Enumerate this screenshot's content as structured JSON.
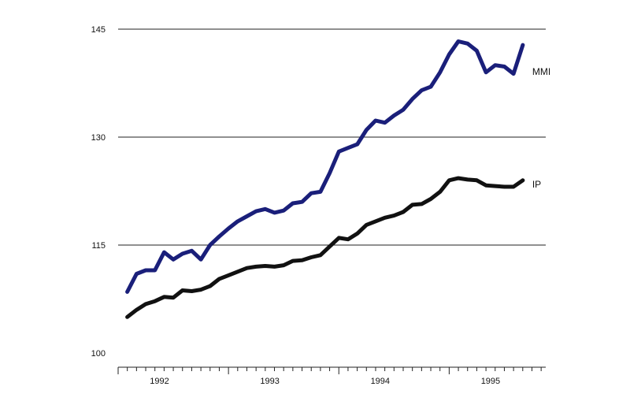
{
  "chart_data": {
    "type": "line",
    "title": "",
    "xlabel": "",
    "ylabel": "",
    "ylim": [
      100,
      145
    ],
    "yticks": [
      {
        "value": 100,
        "label": "100"
      },
      {
        "value": 115,
        "label": "115"
      },
      {
        "value": 130,
        "label": "130"
      },
      {
        "value": 145,
        "label": "145"
      }
    ],
    "xlim": [
      1991.625,
      1995.5
    ],
    "xticks": [
      {
        "value": 1992.5,
        "label": "1992"
      },
      {
        "value": 1993.5,
        "label": "1993"
      },
      {
        "value": 1994.5,
        "label": "1994"
      },
      {
        "value": 1995.5,
        "label": "1995"
      }
    ],
    "grid": "horizontal",
    "legend": "direct labels at right end of series",
    "series": [
      {
        "name": "MMI",
        "color": "#1a1f7a",
        "x": [
          1991.708,
          1991.792,
          1991.875,
          1991.958,
          1992.042,
          1992.125,
          1992.208,
          1992.292,
          1992.375,
          1992.458,
          1992.542,
          1992.625,
          1992.708,
          1992.792,
          1992.875,
          1992.958,
          1993.042,
          1993.125,
          1993.208,
          1993.292,
          1993.375,
          1993.458,
          1993.542,
          1993.625,
          1993.708,
          1993.792,
          1993.875,
          1993.958,
          1994.042,
          1994.125,
          1994.208,
          1994.292,
          1994.375,
          1994.458,
          1994.542,
          1994.625,
          1994.708,
          1994.792,
          1994.875,
          1994.958,
          1995.042,
          1995.125,
          1995.208,
          1995.292,
          1995.375,
          1995.458
        ],
        "values": [
          108.5,
          111,
          111.5,
          111.5,
          114,
          113,
          113.8,
          114.2,
          113,
          115,
          116.2,
          117.3,
          118.3,
          119,
          119.7,
          120,
          119.5,
          119.8,
          120.8,
          121,
          122.2,
          122.4,
          125,
          128,
          128.5,
          129,
          131,
          132.3,
          132,
          133,
          133.8,
          135.3,
          136.5,
          137,
          139,
          141.5,
          143.3,
          143,
          142,
          139,
          140,
          139.8,
          138.8,
          142.8,
          null,
          null
        ]
      },
      {
        "name": "IP",
        "color": "#111111",
        "x": [
          1991.708,
          1991.792,
          1991.875,
          1991.958,
          1992.042,
          1992.125,
          1992.208,
          1992.292,
          1992.375,
          1992.458,
          1992.542,
          1992.625,
          1992.708,
          1992.792,
          1992.875,
          1992.958,
          1993.042,
          1993.125,
          1993.208,
          1993.292,
          1993.375,
          1993.458,
          1993.542,
          1993.625,
          1993.708,
          1993.792,
          1993.875,
          1993.958,
          1994.042,
          1994.125,
          1994.208,
          1994.292,
          1994.375,
          1994.458,
          1994.542,
          1994.625,
          1994.708,
          1994.792,
          1994.875,
          1994.958,
          1995.042,
          1995.125,
          1995.208,
          1995.292,
          1995.375,
          1995.458
        ],
        "values": [
          105,
          106,
          106.8,
          107.2,
          107.8,
          107.7,
          108.7,
          108.6,
          108.8,
          109.3,
          110.3,
          110.8,
          111.3,
          111.8,
          112,
          112.1,
          112,
          112.2,
          112.8,
          112.9,
          113.3,
          113.6,
          114.8,
          116,
          115.8,
          116.6,
          117.8,
          118.3,
          118.8,
          119.1,
          119.6,
          120.6,
          120.7,
          121.4,
          122.4,
          124,
          124.3,
          124.1,
          124,
          123.3,
          123.2,
          123.1,
          123.1,
          124,
          null,
          null
        ]
      }
    ]
  }
}
